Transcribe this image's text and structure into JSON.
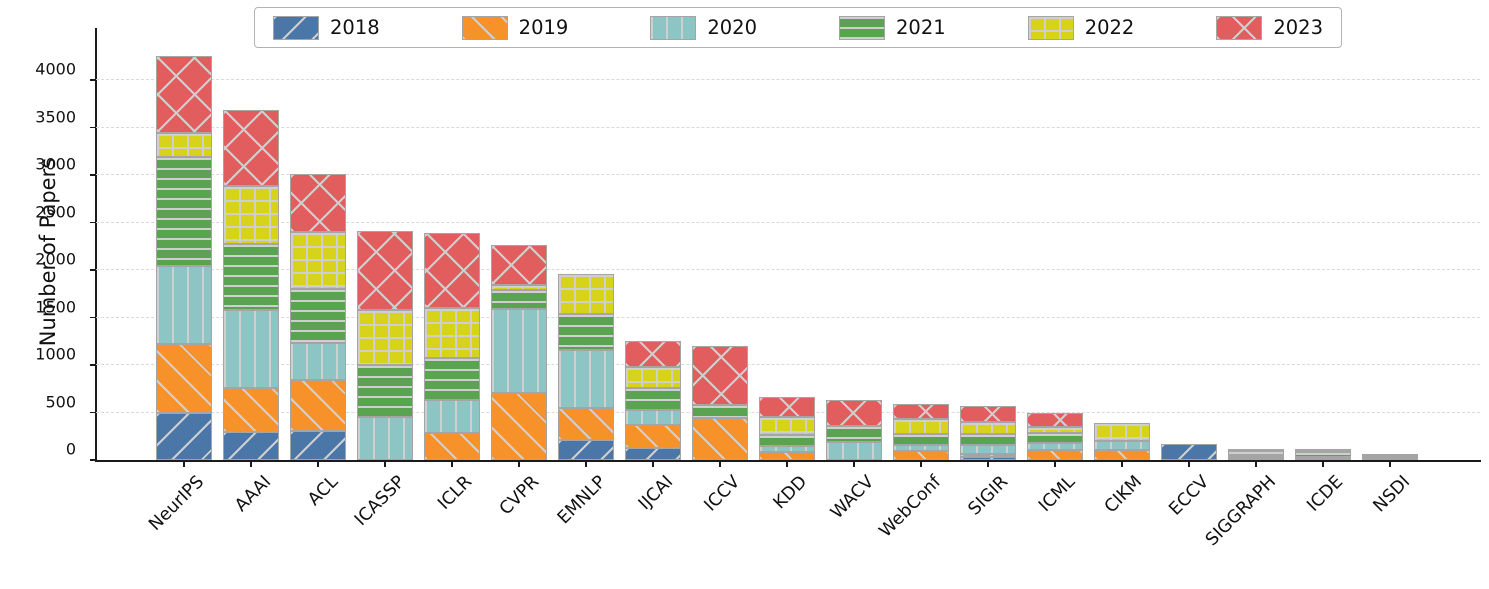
{
  "chart_data": {
    "type": "bar",
    "variant": "stacked",
    "title": "",
    "xlabel": "",
    "ylabel": "Number of Papers",
    "ylim": [
      0,
      4400
    ],
    "yticks": [
      0,
      500,
      1000,
      1500,
      2000,
      2500,
      3000,
      3500,
      4000
    ],
    "grid": "horizontal-dashed",
    "legend_position": "top-center",
    "categories": [
      "NeurIPS",
      "AAAI",
      "ACL",
      "ICASSP",
      "ICLR",
      "CVPR",
      "EMNLP",
      "IJCAI",
      "ICCV",
      "KDD",
      "WACV",
      "WebConf",
      "SIGIR",
      "ICML",
      "CIKM",
      "ECCV",
      "SIGGRAPH",
      "ICDE",
      "NSDI"
    ],
    "series": [
      {
        "name": "2018",
        "color": "#4a77a8",
        "hatch": "backslash",
        "values": [
          490,
          300,
          310,
          0,
          0,
          0,
          215,
          125,
          0,
          0,
          0,
          0,
          35,
          0,
          0,
          170,
          0,
          0,
          0
        ]
      },
      {
        "name": "2019",
        "color": "#f79129",
        "hatch": "slash",
        "values": [
          730,
          460,
          530,
          0,
          280,
          710,
          330,
          240,
          440,
          80,
          0,
          90,
          30,
          110,
          110,
          0,
          15,
          15,
          20
        ]
      },
      {
        "name": "2020",
        "color": "#8cc5c3",
        "hatch": "vert",
        "values": [
          820,
          815,
          395,
          450,
          350,
          880,
          610,
          160,
          0,
          70,
          190,
          65,
          95,
          70,
          90,
          0,
          15,
          20,
          20
        ]
      },
      {
        "name": "2021",
        "color": "#5aa350",
        "hatch": "horiz",
        "values": [
          1150,
          700,
          565,
          545,
          440,
          200,
          385,
          230,
          140,
          115,
          165,
          120,
          115,
          100,
          0,
          0,
          20,
          50,
          20
        ]
      },
      {
        "name": "2022",
        "color": "#d7d31b",
        "hatch": "plus",
        "values": [
          250,
          610,
          605,
          580,
          525,
          55,
          420,
          225,
          0,
          185,
          0,
          160,
          130,
          65,
          185,
          0,
          45,
          10,
          0
        ]
      },
      {
        "name": "2023",
        "color": "#e25d5d",
        "hatch": "cross",
        "values": [
          810,
          800,
          610,
          840,
          790,
          420,
          0,
          270,
          620,
          210,
          275,
          150,
          160,
          150,
          0,
          0,
          25,
          10,
          0
        ]
      }
    ],
    "totals": [
      4250,
      3685,
      3015,
      2415,
      2385,
      2265,
      1960,
      1250,
      1200,
      660,
      630,
      585,
      565,
      495,
      385,
      170,
      120,
      105,
      60
    ]
  }
}
